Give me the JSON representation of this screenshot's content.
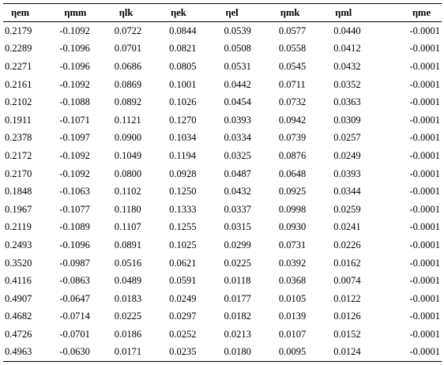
{
  "table": {
    "headers": [
      "ηem",
      "ηmm",
      "ηlk",
      "ηek",
      "ηel",
      "ηmk",
      "ηml",
      "ηme"
    ],
    "rows": [
      [
        "0.2179",
        "-0.1092",
        "0.0722",
        "0.0844",
        "0.0539",
        "0.0577",
        "0.0440",
        "-0.0001"
      ],
      [
        "0.2289",
        "-0.1096",
        "0.0701",
        "0.0821",
        "0.0508",
        "0.0558",
        "0.0412",
        "-0.0001"
      ],
      [
        "0.2271",
        "-0.1096",
        "0.0686",
        "0.0805",
        "0.0531",
        "0.0545",
        "0.0432",
        "-0.0001"
      ],
      [
        "0.2161",
        "-0.1092",
        "0.0869",
        "0.1001",
        "0.0442",
        "0.0711",
        "0.0352",
        "-0.0001"
      ],
      [
        "0.2102",
        "-0.1088",
        "0.0892",
        "0.1026",
        "0.0454",
        "0.0732",
        "0.0363",
        "-0.0001"
      ],
      [
        "0.1911",
        "-0.1071",
        "0.1121",
        "0.1270",
        "0.0393",
        "0.0942",
        "0.0309",
        "-0.0001"
      ],
      [
        "0.2378",
        "-0.1097",
        "0.0900",
        "0.1034",
        "0.0334",
        "0.0739",
        "0.0257",
        "-0.0001"
      ],
      [
        "0.2172",
        "-0.1092",
        "0.1049",
        "0.1194",
        "0.0325",
        "0.0876",
        "0.0249",
        "-0.0001"
      ],
      [
        "0.2170",
        "-0.1092",
        "0.0800",
        "0.0928",
        "0.0487",
        "0.0648",
        "0.0393",
        "-0.0001"
      ],
      [
        "0.1848",
        "-0.1063",
        "0.1102",
        "0.1250",
        "0.0432",
        "0.0925",
        "0.0344",
        "-0.0001"
      ],
      [
        "0.1967",
        "-0.1077",
        "0.1180",
        "0.1333",
        "0.0337",
        "0.0998",
        "0.0259",
        "-0.0001"
      ],
      [
        "0.2119",
        "-0.1089",
        "0.1107",
        "0.1255",
        "0.0315",
        "0.0930",
        "0.0241",
        "-0.0001"
      ],
      [
        "0.2493",
        "-0.1096",
        "0.0891",
        "0.1025",
        "0.0299",
        "0.0731",
        "0.0226",
        "-0.0001"
      ],
      [
        "0.3520",
        "-0.0987",
        "0.0516",
        "0.0621",
        "0.0225",
        "0.0392",
        "0.0162",
        "-0.0001"
      ],
      [
        "0.4116",
        "-0.0863",
        "0.0489",
        "0.0591",
        "0.0118",
        "0.0368",
        "0.0074",
        "-0.0001"
      ],
      [
        "0.4907",
        "-0.0647",
        "0.0183",
        "0.0249",
        "0.0177",
        "0.0105",
        "0.0122",
        "-0.0001"
      ],
      [
        "0.4682",
        "-0.0714",
        "0.0225",
        "0.0297",
        "0.0182",
        "0.0139",
        "0.0126",
        "-0.0001"
      ],
      [
        "0.4726",
        "-0.0701",
        "0.0186",
        "0.0252",
        "0.0213",
        "0.0107",
        "0.0152",
        "-0.0001"
      ],
      [
        "0.4963",
        "-0.0630",
        "0.0171",
        "0.0235",
        "0.0180",
        "0.0095",
        "0.0124",
        "-0.0001"
      ]
    ]
  }
}
